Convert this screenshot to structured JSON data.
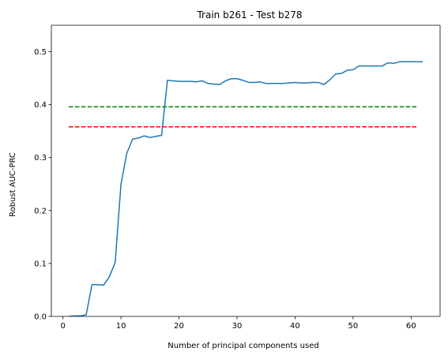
{
  "chart_data": {
    "type": "line",
    "title": "Train b261 - Test b278",
    "xlabel": "Number of principal components used",
    "ylabel": "Robust AUC-PRC",
    "xlim": [
      -2,
      65
    ],
    "ylim": [
      0,
      0.55
    ],
    "xticks": [
      0,
      10,
      20,
      30,
      40,
      50,
      60
    ],
    "yticks": [
      0.0,
      0.1,
      0.2,
      0.3,
      0.4,
      0.5
    ],
    "xtick_labels": [
      "0",
      "10",
      "20",
      "30",
      "40",
      "50",
      "60"
    ],
    "ytick_labels": [
      "0.0",
      "0.1",
      "0.2",
      "0.3",
      "0.4",
      "0.5"
    ],
    "grid": false,
    "legend": "none",
    "series": [
      {
        "color": "#1f77b4",
        "style": "solid",
        "x": [
          1,
          2,
          3,
          4,
          5,
          6,
          7,
          8,
          9,
          10,
          11,
          12,
          13,
          14,
          15,
          16,
          17,
          18,
          19,
          20,
          21,
          22,
          23,
          24,
          25,
          26,
          27,
          28,
          29,
          30,
          31,
          32,
          33,
          34,
          35,
          36,
          37,
          38,
          39,
          40,
          41,
          42,
          43,
          44,
          45,
          46,
          47,
          48,
          49,
          50,
          51,
          52,
          53,
          54,
          55,
          56,
          57,
          58,
          59,
          60,
          61,
          62
        ],
        "y": [
          0.0,
          0.001,
          0.001,
          0.003,
          0.06,
          0.06,
          0.059,
          0.075,
          0.102,
          0.25,
          0.308,
          0.335,
          0.337,
          0.341,
          0.338,
          0.34,
          0.342,
          0.446,
          0.445,
          0.444,
          0.444,
          0.444,
          0.443,
          0.445,
          0.44,
          0.439,
          0.438,
          0.445,
          0.449,
          0.449,
          0.446,
          0.442,
          0.442,
          0.443,
          0.44,
          0.44,
          0.44,
          0.44,
          0.441,
          0.442,
          0.441,
          0.441,
          0.442,
          0.442,
          0.438,
          0.447,
          0.458,
          0.459,
          0.465,
          0.466,
          0.473,
          0.473,
          0.473,
          0.473,
          0.473,
          0.479,
          0.478,
          0.481,
          0.481,
          0.481,
          0.481,
          0.481
        ]
      },
      {
        "color": "#008000",
        "style": "dashed",
        "x": [
          1,
          61
        ],
        "y": [
          0.396,
          0.396
        ]
      },
      {
        "color": "#ff0000",
        "style": "dashed",
        "x": [
          1,
          61
        ],
        "y": [
          0.358,
          0.358
        ]
      }
    ]
  }
}
